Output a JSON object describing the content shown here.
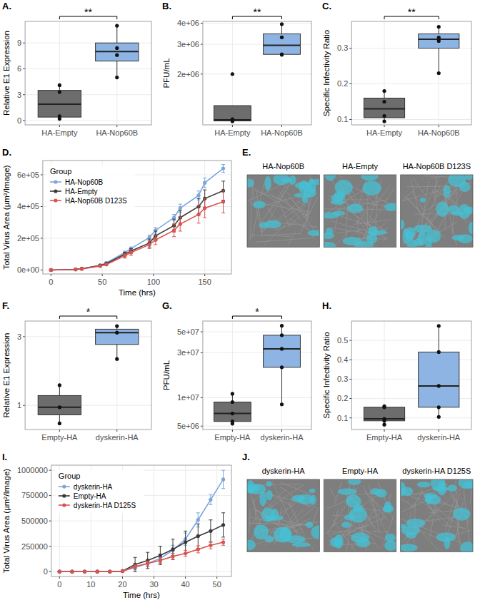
{
  "chart_data": [
    {
      "type": "box",
      "label": "A.",
      "y_label": "Relative E1 Expression",
      "categories": [
        "HA-Empty",
        "HA-Nop60B"
      ],
      "colors": [
        "#6d6d6d",
        "#8db4e2"
      ],
      "ylim": [
        -0.5,
        11.5
      ],
      "yticks": [
        0,
        3,
        6,
        9
      ],
      "grid": true,
      "points": [
        [
          0.2,
          0.5,
          3.3,
          4.1
        ],
        [
          5.0,
          7.6,
          8.4,
          11.0
        ]
      ],
      "q1": [
        0.4,
        6.9
      ],
      "median": [
        1.9,
        8.0
      ],
      "q3": [
        3.5,
        9.0
      ],
      "whisker_low": [
        0.2,
        5.0
      ],
      "whisker_high": [
        4.1,
        11.0
      ],
      "significance": "**"
    },
    {
      "type": "box",
      "label": "B.",
      "y_label": "PFU/mL",
      "categories": [
        "HA-Empty",
        "HA-Nop60B"
      ],
      "colors": [
        "#6d6d6d",
        "#8db4e2"
      ],
      "log": "y",
      "ylim": [
        1000000,
        4100000
      ],
      "yticks": [
        {
          "value": 2000000,
          "label": "2e+06"
        },
        {
          "value": 3000000,
          "label": "3e+06"
        },
        {
          "value": 4000000,
          "label": "4e+06"
        }
      ],
      "grid": true,
      "points": [
        [
          1050000,
          1060000,
          1080000,
          2000000
        ],
        [
          2600000,
          2620000,
          3300000,
          3950000
        ]
      ],
      "q1": [
        1055000,
        2615000
      ],
      "median": [
        1070000,
        2960000
      ],
      "q3": [
        1300000,
        3460000
      ],
      "whisker_low": [
        1050000,
        2600000
      ],
      "whisker_high": [
        1300000,
        3950000
      ],
      "significance": "**"
    },
    {
      "type": "box",
      "label": "C.",
      "y_label": "Specific Infectivity Ratio",
      "categories": [
        "HA-Empty",
        "HA-Nop60B"
      ],
      "colors": [
        "#6d6d6d",
        "#8db4e2"
      ],
      "ylim": [
        0.085,
        0.375
      ],
      "yticks": [
        0.1,
        0.2,
        0.3
      ],
      "grid": true,
      "points": [
        [
          0.095,
          0.11,
          0.15,
          0.18
        ],
        [
          0.23,
          0.32,
          0.33,
          0.36
        ]
      ],
      "q1": [
        0.105,
        0.3
      ],
      "median": [
        0.13,
        0.325
      ],
      "q3": [
        0.16,
        0.34
      ],
      "whisker_low": [
        0.095,
        0.23
      ],
      "whisker_high": [
        0.18,
        0.36
      ],
      "significance": "**"
    },
    {
      "type": "line",
      "label": "D.",
      "x_label": "Time (hrs)",
      "y_label": "Total Virus Area (µm²/Image)",
      "legend_title": "Group",
      "legend": "top-left",
      "grid": true,
      "x": [
        0,
        24,
        30,
        48,
        54,
        72,
        78,
        96,
        102,
        120,
        126,
        144,
        150,
        168
      ],
      "xlim": [
        -8,
        176
      ],
      "xticks": [
        0,
        50,
        100,
        150
      ],
      "ylim": [
        -25000,
        690000
      ],
      "yticks": [
        {
          "value": 0,
          "label": "0e+00"
        },
        {
          "value": 200000,
          "label": "2e+05"
        },
        {
          "value": 400000,
          "label": "4e+05"
        },
        {
          "value": 600000,
          "label": "6e+05"
        }
      ],
      "series": [
        {
          "name": "HA-Nop60B",
          "color": "#7aa6dc",
          "marker": "circle",
          "line_style": "solid",
          "values": [
            0,
            4000,
            9000,
            30000,
            45000,
            110000,
            135000,
            205000,
            250000,
            330000,
            390000,
            470000,
            550000,
            640000
          ],
          "errors": [
            0,
            1000,
            2000,
            4000,
            5000,
            8000,
            10000,
            15000,
            18000,
            20000,
            25000,
            28000,
            30000,
            25000
          ]
        },
        {
          "name": "HA-Empty",
          "color": "#3a3a3a",
          "marker": "circle",
          "line_style": "solid",
          "values": [
            0,
            4000,
            8000,
            28000,
            40000,
            100000,
            120000,
            170000,
            215000,
            280000,
            330000,
            400000,
            450000,
            500000
          ],
          "errors": [
            0,
            1000,
            2000,
            5000,
            6000,
            12000,
            15000,
            25000,
            30000,
            40000,
            45000,
            50000,
            55000,
            60000
          ]
        },
        {
          "name": "HA-Nop60B D123S",
          "color": "#d9534f",
          "marker": "circle",
          "line_style": "solid",
          "values": [
            0,
            3000,
            7000,
            25000,
            35000,
            90000,
            110000,
            160000,
            190000,
            250000,
            290000,
            350000,
            390000,
            430000
          ],
          "errors": [
            0,
            1000,
            2000,
            5000,
            6000,
            15000,
            18000,
            25000,
            30000,
            40000,
            45000,
            55000,
            60000,
            70000
          ]
        }
      ]
    },
    {
      "type": "image",
      "label": "E.",
      "titles": [
        "HA-Nop60B",
        "HA-Empty",
        "HA-Nop60B D123S"
      ]
    },
    {
      "type": "box",
      "label": "F.",
      "y_label": "Relative E1 Expression",
      "categories": [
        "Empty-HA",
        "dyskerin-HA"
      ],
      "colors": [
        "#6d6d6d",
        "#8db4e2"
      ],
      "log": "y",
      "ylim": [
        0.68,
        3.85
      ],
      "yticks": [
        1,
        3
      ],
      "grid": true,
      "points": [
        [
          0.75,
          0.97,
          1.38
        ],
        [
          2.1,
          3.2,
          3.55
        ]
      ],
      "q1": [
        0.86,
        2.65
      ],
      "median": [
        0.97,
        3.2
      ],
      "q3": [
        1.17,
        3.38
      ],
      "whisker_low": [
        0.75,
        2.1
      ],
      "whisker_high": [
        1.38,
        3.55
      ],
      "significance": "*"
    },
    {
      "type": "box",
      "label": "G.",
      "y_label": "PFU/mL",
      "categories": [
        "Empty-HA",
        "dyskerin-HA"
      ],
      "colors": [
        "#6d6d6d",
        "#8db4e2"
      ],
      "log": "y",
      "ylim": [
        4600000,
        65000000
      ],
      "yticks": [
        {
          "value": 5000000,
          "label": "5e+06"
        },
        {
          "value": 10000000,
          "label": "1e+07"
        },
        {
          "value": 30000000,
          "label": "3e+07"
        },
        {
          "value": 50000000,
          "label": "5e+07"
        }
      ],
      "grid": true,
      "points": [
        [
          5300000,
          5600000,
          6800000,
          9000000,
          11000000
        ],
        [
          8500000,
          21000000,
          33000000,
          46000000,
          58000000
        ]
      ],
      "q1": [
        5600000,
        21000000
      ],
      "median": [
        6800000,
        33000000
      ],
      "q3": [
        9000000,
        46000000
      ],
      "whisker_low": [
        5300000,
        8500000
      ],
      "whisker_high": [
        11000000,
        58000000
      ],
      "significance": "*"
    },
    {
      "type": "box",
      "label": "H.",
      "y_label": "Specific Infectivity Ratio",
      "categories": [
        "Empty-HA",
        "dyskerin-HA"
      ],
      "colors": [
        "#6d6d6d",
        "#8db4e2"
      ],
      "ylim": [
        0.04,
        0.6
      ],
      "yticks": [
        0.1,
        0.2,
        0.3,
        0.4,
        0.5
      ],
      "grid": true,
      "points": [
        [
          0.065,
          0.085,
          0.095,
          0.155,
          0.16
        ],
        [
          0.105,
          0.155,
          0.265,
          0.44,
          0.575
        ]
      ],
      "q1": [
        0.085,
        0.155
      ],
      "median": [
        0.095,
        0.265
      ],
      "q3": [
        0.155,
        0.44
      ],
      "whisker_low": [
        0.065,
        0.105
      ],
      "whisker_high": [
        0.16,
        0.575
      ]
    },
    {
      "type": "line",
      "label": "I.",
      "x_label": "Time (hrs)",
      "y_label": "Total Virus Area (µm²/Image)",
      "legend_title": "Group",
      "legend": "top-left",
      "grid": true,
      "x": [
        0,
        4,
        8,
        12,
        16,
        20,
        24,
        28,
        32,
        36,
        40,
        44,
        48,
        52
      ],
      "xlim": [
        -2.6,
        54.6
      ],
      "xticks": [
        0,
        10,
        20,
        30,
        40,
        50
      ],
      "ylim": [
        -48000,
        1050000
      ],
      "yticks": [
        0,
        250000,
        500000,
        750000,
        1000000
      ],
      "series": [
        {
          "name": "dyskerin-HA",
          "color": "#7aa6dc",
          "marker": "circle",
          "line_style": "solid",
          "values": [
            0,
            0,
            0,
            0,
            0,
            5000,
            40000,
            80000,
            130000,
            210000,
            320000,
            510000,
            710000,
            910000
          ],
          "errors": [
            0,
            0,
            0,
            0,
            0,
            2000,
            20000,
            30000,
            40000,
            50000,
            60000,
            70000,
            50000,
            90000
          ]
        },
        {
          "name": "Empty-HA",
          "color": "#3a3a3a",
          "marker": "circle",
          "line_style": "solid",
          "values": [
            0,
            0,
            0,
            0,
            0,
            5000,
            70000,
            110000,
            160000,
            220000,
            290000,
            350000,
            400000,
            460000
          ],
          "errors": [
            0,
            0,
            0,
            0,
            0,
            3000,
            70000,
            80000,
            90000,
            100000,
            110000,
            120000,
            110000,
            120000
          ]
        },
        {
          "name": "dyskerin-HA D125S",
          "color": "#d9534f",
          "marker": "circle",
          "line_style": "solid",
          "values": [
            0,
            0,
            0,
            0,
            0,
            4000,
            50000,
            80000,
            110000,
            150000,
            180000,
            220000,
            260000,
            290000
          ],
          "errors": [
            0,
            0,
            0,
            0,
            0,
            2000,
            20000,
            25000,
            30000,
            30000,
            30000,
            35000,
            35000,
            30000
          ]
        }
      ]
    },
    {
      "type": "image",
      "label": "J.",
      "titles": [
        "dyskerin-HA",
        "Empty-HA",
        "dyskerin-HA D125S"
      ]
    }
  ]
}
